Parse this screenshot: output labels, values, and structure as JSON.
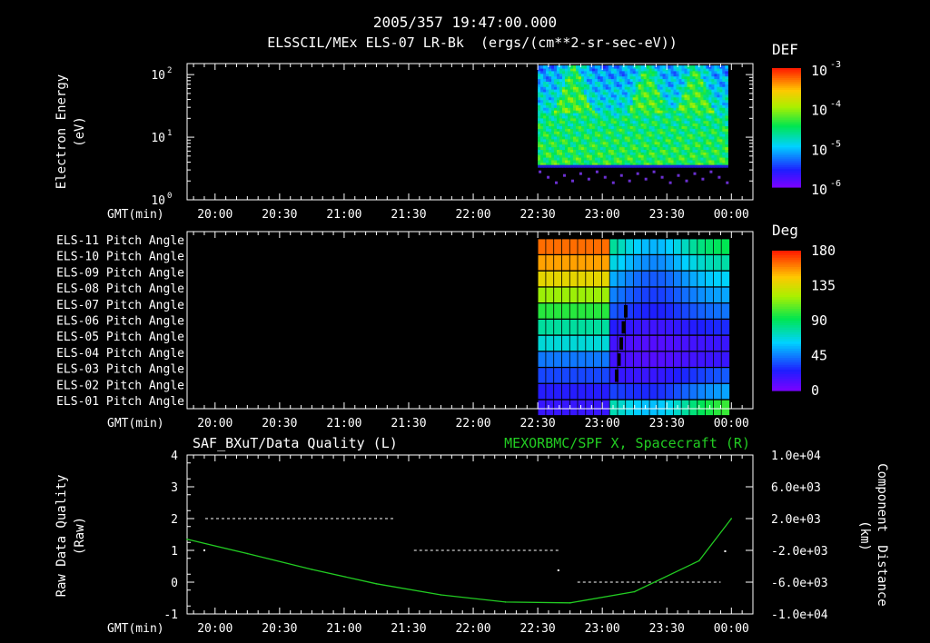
{
  "header": {
    "timestamp": "2005/357 19:47:00.000",
    "subtitle": "ELSSCIL/MEx ELS-07 LR-Bk  (ergs/(cm**2-sr-sec-eV))"
  },
  "time_axis": {
    "label": "GMT(min)",
    "ticks": [
      "20:00",
      "20:30",
      "21:00",
      "21:30",
      "22:00",
      "22:30",
      "23:00",
      "23:30",
      "00:00"
    ]
  },
  "chart_data": [
    {
      "type": "heatmap",
      "id": "energy-spectrogram",
      "ylabel": "Electron Energy",
      "yunit": "(eV)",
      "yscale": "log",
      "ylim": [
        1,
        150
      ],
      "yticks": [
        {
          "base": "10",
          "exp": "2"
        },
        {
          "base": "10",
          "exp": "1"
        },
        {
          "base": "10",
          "exp": "0"
        }
      ],
      "x_range_minutes": [
        1187,
        1450
      ],
      "data_start": "22:30",
      "data_end": "00:00",
      "colorbar": {
        "title": "DEF",
        "scale": "log",
        "range": [
          1e-06,
          0.001
        ],
        "ticks": [
          {
            "base": "10",
            "exp": "-3"
          },
          {
            "base": "10",
            "exp": "-4"
          },
          {
            "base": "10",
            "exp": "-5"
          },
          {
            "base": "10",
            "exp": "-6"
          }
        ]
      }
    },
    {
      "type": "heatmap",
      "id": "pitch-angle",
      "colorbar": {
        "title": "Deg",
        "range": [
          0,
          180
        ],
        "ticks": [
          "180",
          "135",
          "90",
          "45",
          "0"
        ]
      },
      "rows": [
        "ELS-11 Pitch Angle",
        "ELS-10 Pitch Angle",
        "ELS-09 Pitch Angle",
        "ELS-08 Pitch Angle",
        "ELS-07 Pitch Angle",
        "ELS-06 Pitch Angle",
        "ELS-05 Pitch Angle",
        "ELS-04 Pitch Angle",
        "ELS-03 Pitch Angle",
        "ELS-02 Pitch Angle",
        "ELS-01 Pitch Angle"
      ],
      "values_before_23_05": [
        165,
        155,
        140,
        120,
        100,
        80,
        70,
        45,
        35,
        25,
        20
      ],
      "values_after_23_05": [
        95,
        80,
        65,
        55,
        45,
        30,
        20,
        20,
        25,
        40,
        90
      ]
    },
    {
      "type": "line",
      "id": "data-quality",
      "title_left": "SAF_BXuT/Data Quality (L)",
      "title_right": "MEXORBMC/SPF X, Spacecraft (R)",
      "ylabel_left": [
        "Raw Data Quality",
        "(Raw)"
      ],
      "ylabel_right": [
        "Component",
        "Distance",
        "(km)"
      ],
      "ylim_left": [
        -1,
        4
      ],
      "yticks_left": [
        "4",
        "3",
        "2",
        "1",
        "0",
        "-1"
      ],
      "ylim_right": [
        -10000,
        10000
      ],
      "yticks_right": [
        "1.0e+04",
        "6.0e+03",
        "2.0e+03",
        "-2.0e+03",
        "-6.0e+03",
        "-1.0e+04"
      ],
      "series": [
        {
          "role": "data-quality",
          "axis": "left",
          "color": "#ffffff",
          "style": "dashed",
          "segments": [
            {
              "x": [
                "19:47",
                "21:24"
              ],
              "y": 2
            },
            {
              "x": [
                "21:24",
                "22:40"
              ],
              "y": 1
            },
            {
              "x": [
                "22:40",
                "23:55"
              ],
              "y": 0
            }
          ]
        },
        {
          "role": "spacecraft-x",
          "axis": "right",
          "color": "#22cc22",
          "x": [
            "19:47",
            "20:15",
            "20:45",
            "21:15",
            "21:45",
            "22:15",
            "22:45",
            "23:15",
            "23:45",
            "00:00"
          ],
          "y": [
            -600,
            -2400,
            -4400,
            -6200,
            -7600,
            -8500,
            -8600,
            -7200,
            -3300,
            2000
          ]
        }
      ]
    }
  ]
}
